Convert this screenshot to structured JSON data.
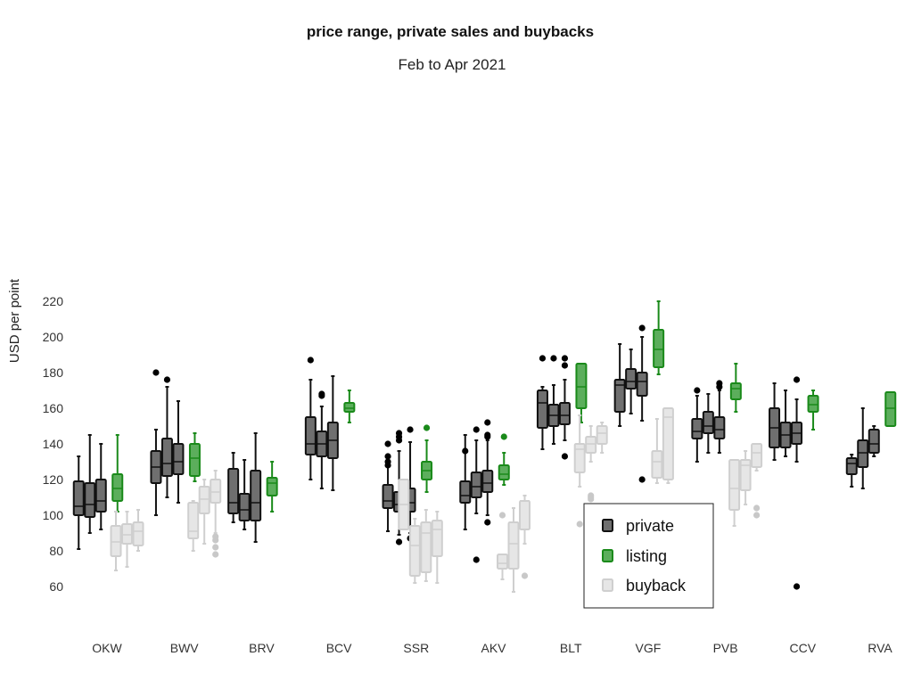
{
  "chart_data": {
    "type": "boxplot",
    "title": "price range, private sales and buybacks",
    "subtitle": "Feb to Apr 2021",
    "ylabel": "USD per point",
    "xlabel": "",
    "ylim": [
      45,
      222
    ],
    "yticks": [
      60,
      80,
      100,
      120,
      140,
      160,
      180,
      200,
      220
    ],
    "grid": false,
    "legend_position": "bottom-right",
    "categories": [
      "OKW",
      "BWV",
      "BRV",
      "BCV",
      "SSR",
      "AKV",
      "BLT",
      "VGF",
      "PVB",
      "CCV",
      "RVA"
    ],
    "legend": [
      {
        "key": "private",
        "label": "private"
      },
      {
        "key": "listing",
        "label": "listing"
      },
      {
        "key": "buyback",
        "label": "buyback"
      }
    ],
    "colors": {
      "private_fill": "#6f6f6f",
      "private_edge": "#111111",
      "listing_fill": "#5cae5c",
      "listing_edge": "#1a8a1a",
      "buyback_fill": "#e6e6e6",
      "buyback_edge": "#cfcfcf",
      "outlier_private": "#000000",
      "outlier_listing": "#1a8a1a",
      "outlier_buyback": "#c8c8c8"
    },
    "groups": [
      {
        "category": "OKW",
        "private": [
          {
            "min": 81,
            "q1": 100,
            "median": 105,
            "q3": 119,
            "max": 133,
            "outliers": []
          },
          {
            "min": 90,
            "q1": 99,
            "median": 106,
            "q3": 118,
            "max": 145,
            "outliers": []
          },
          {
            "min": 92,
            "q1": 102,
            "median": 108,
            "q3": 120,
            "max": 140,
            "outliers": []
          }
        ],
        "listing": [
          {
            "min": 102,
            "q1": 108,
            "median": 115,
            "q3": 123,
            "max": 145,
            "outliers": []
          }
        ],
        "buyback": [
          {
            "min": 69,
            "q1": 77,
            "median": 85,
            "q3": 94,
            "max": 102,
            "outliers": []
          },
          {
            "min": 71,
            "q1": 84,
            "median": 89,
            "q3": 95,
            "max": 102,
            "outliers": []
          },
          {
            "min": 80,
            "q1": 83,
            "median": 91,
            "q3": 96,
            "max": 103,
            "outliers": []
          }
        ]
      },
      {
        "category": "BWV",
        "private": [
          {
            "min": 100,
            "q1": 118,
            "median": 127,
            "q3": 136,
            "max": 148,
            "outliers": [
              180
            ]
          },
          {
            "min": 110,
            "q1": 122,
            "median": 129,
            "q3": 143,
            "max": 172,
            "outliers": [
              176
            ]
          },
          {
            "min": 107,
            "q1": 123,
            "median": 130,
            "q3": 140,
            "max": 164,
            "outliers": []
          }
        ],
        "listing": [
          {
            "min": 119,
            "q1": 122,
            "median": 132,
            "q3": 140,
            "max": 146,
            "outliers": []
          }
        ],
        "buyback": [
          {
            "min": 80,
            "q1": 87,
            "median": 91,
            "q3": 107,
            "max": 108,
            "outliers": []
          },
          {
            "min": 84,
            "q1": 101,
            "median": 109,
            "q3": 116,
            "max": 120,
            "outliers": []
          },
          {
            "min": 90,
            "q1": 107,
            "median": 113,
            "q3": 120,
            "max": 125,
            "outliers": [
              78,
              82,
              86,
              88
            ]
          }
        ]
      },
      {
        "category": "BRV",
        "private": [
          {
            "min": 96,
            "q1": 101,
            "median": 107,
            "q3": 126,
            "max": 135,
            "outliers": []
          },
          {
            "min": 92,
            "q1": 97,
            "median": 103,
            "q3": 112,
            "max": 131,
            "outliers": []
          },
          {
            "min": 85,
            "q1": 97,
            "median": 107,
            "q3": 125,
            "max": 146,
            "outliers": []
          }
        ],
        "listing": [
          {
            "min": 102,
            "q1": 111,
            "median": 118,
            "q3": 121,
            "max": 130,
            "outliers": []
          }
        ],
        "buyback": []
      },
      {
        "category": "BCV",
        "private": [
          {
            "min": 120,
            "q1": 134,
            "median": 140,
            "q3": 155,
            "max": 176,
            "outliers": [
              187
            ]
          },
          {
            "min": 115,
            "q1": 133,
            "median": 140,
            "q3": 147,
            "max": 161,
            "outliers": [
              167,
              168
            ]
          },
          {
            "min": 114,
            "q1": 132,
            "median": 142,
            "q3": 152,
            "max": 178,
            "outliers": []
          }
        ],
        "listing": [
          {
            "min": 152,
            "q1": 158,
            "median": 160,
            "q3": 163,
            "max": 170,
            "outliers": []
          }
        ],
        "buyback": []
      },
      {
        "category": "SSR",
        "private": [
          {
            "min": 91,
            "q1": 104,
            "median": 108,
            "q3": 117,
            "max": 134,
            "outliers": [
              140,
              128,
              130,
              133
            ]
          },
          {
            "min": 89,
            "q1": 102,
            "median": 106,
            "q3": 113,
            "max": 136,
            "outliers": [
              85,
              142,
              144,
              146
            ]
          },
          {
            "min": 90,
            "q1": 102,
            "median": 107,
            "q3": 115,
            "max": 141,
            "outliers": [
              87,
              148
            ]
          }
        ],
        "listing": [
          {
            "min": 113,
            "q1": 120,
            "median": 125,
            "q3": 130,
            "max": 142,
            "outliers": [
              149
            ]
          }
        ],
        "buyback": [
          {
            "min": 92,
            "q1": 92,
            "median": 106,
            "q3": 120,
            "max": 120,
            "outliers": []
          },
          {
            "min": 62,
            "q1": 66,
            "median": 83,
            "q3": 94,
            "max": 98,
            "outliers": []
          },
          {
            "min": 63,
            "q1": 68,
            "median": 90,
            "q3": 96,
            "max": 103,
            "outliers": []
          },
          {
            "min": 62,
            "q1": 77,
            "median": 92,
            "q3": 97,
            "max": 102,
            "outliers": []
          }
        ]
      },
      {
        "category": "AKV",
        "private": [
          {
            "min": 92,
            "q1": 107,
            "median": 111,
            "q3": 119,
            "max": 145,
            "outliers": [
              136
            ]
          },
          {
            "min": 101,
            "q1": 110,
            "median": 116,
            "q3": 124,
            "max": 142,
            "outliers": [
              148,
              75
            ]
          },
          {
            "min": 100,
            "q1": 113,
            "median": 118,
            "q3": 125,
            "max": 142,
            "outliers": [
              145,
              144,
              152,
              96
            ]
          }
        ],
        "listing": [
          {
            "min": 117,
            "q1": 120,
            "median": 123,
            "q3": 128,
            "max": 135,
            "outliers": [
              144
            ]
          }
        ],
        "buyback": [
          {
            "min": 64,
            "q1": 70,
            "median": 73,
            "q3": 78,
            "max": 78,
            "outliers": [
              100
            ]
          },
          {
            "min": 57,
            "q1": 70,
            "median": 84,
            "q3": 96,
            "max": 104,
            "outliers": []
          },
          {
            "min": 84,
            "q1": 92,
            "median": 108,
            "q3": 108,
            "max": 111,
            "outliers": [
              66
            ]
          }
        ]
      },
      {
        "category": "BLT",
        "private": [
          {
            "min": 137,
            "q1": 149,
            "median": 163,
            "q3": 170,
            "max": 172,
            "outliers": [
              188
            ]
          },
          {
            "min": 140,
            "q1": 150,
            "median": 156,
            "q3": 162,
            "max": 173,
            "outliers": [
              188
            ]
          },
          {
            "min": 142,
            "q1": 151,
            "median": 156,
            "q3": 163,
            "max": 176,
            "outliers": [
              133,
              184,
              188
            ]
          }
        ],
        "listing": [
          {
            "min": 152,
            "q1": 160,
            "median": 172,
            "q3": 185,
            "max": 185,
            "outliers": []
          }
        ],
        "buyback": [
          {
            "min": 116,
            "q1": 124,
            "median": 137,
            "q3": 140,
            "max": 156,
            "outliers": [
              95
            ]
          },
          {
            "min": 130,
            "q1": 135,
            "median": 140,
            "q3": 144,
            "max": 150,
            "outliers": [
              109,
              110,
              111
            ]
          },
          {
            "min": 135,
            "q1": 140,
            "median": 146,
            "q3": 150,
            "max": 152,
            "outliers": []
          }
        ]
      },
      {
        "category": "VGF",
        "private": [
          {
            "min": 150,
            "q1": 158,
            "median": 173,
            "q3": 176,
            "max": 196,
            "outliers": []
          },
          {
            "min": 157,
            "q1": 171,
            "median": 175,
            "q3": 182,
            "max": 193,
            "outliers": []
          },
          {
            "min": 153,
            "q1": 167,
            "median": 175,
            "q3": 180,
            "max": 200,
            "outliers": [
              120,
              205
            ]
          }
        ],
        "listing": [
          {
            "min": 179,
            "q1": 183,
            "median": 193,
            "q3": 204,
            "max": 220,
            "outliers": []
          }
        ],
        "buyback": [
          {
            "min": 118,
            "q1": 121,
            "median": 130,
            "q3": 136,
            "max": 154,
            "outliers": []
          },
          {
            "min": 118,
            "q1": 120,
            "median": 155,
            "q3": 160,
            "max": 160,
            "outliers": []
          }
        ]
      },
      {
        "category": "PVB",
        "private": [
          {
            "min": 130,
            "q1": 143,
            "median": 147,
            "q3": 154,
            "max": 167,
            "outliers": [
              170
            ]
          },
          {
            "min": 135,
            "q1": 146,
            "median": 150,
            "q3": 158,
            "max": 168,
            "outliers": []
          },
          {
            "min": 135,
            "q1": 143,
            "median": 148,
            "q3": 155,
            "max": 170,
            "outliers": [
              172,
              174
            ]
          }
        ],
        "listing": [
          {
            "min": 158,
            "q1": 165,
            "median": 171,
            "q3": 174,
            "max": 185,
            "outliers": []
          }
        ],
        "buyback": [
          {
            "min": 94,
            "q1": 103,
            "median": 115,
            "q3": 131,
            "max": 131,
            "outliers": []
          },
          {
            "min": 106,
            "q1": 114,
            "median": 128,
            "q3": 131,
            "max": 136,
            "outliers": []
          },
          {
            "min": 125,
            "q1": 127,
            "median": 135,
            "q3": 140,
            "max": 140,
            "outliers": [
              100,
              104
            ]
          }
        ]
      },
      {
        "category": "CCV",
        "private": [
          {
            "min": 131,
            "q1": 138,
            "median": 149,
            "q3": 160,
            "max": 174,
            "outliers": []
          },
          {
            "min": 133,
            "q1": 138,
            "median": 145,
            "q3": 152,
            "max": 170,
            "outliers": []
          },
          {
            "min": 130,
            "q1": 140,
            "median": 146,
            "q3": 152,
            "max": 165,
            "outliers": [
              176,
              60
            ]
          }
        ],
        "listing": [
          {
            "min": 148,
            "q1": 158,
            "median": 162,
            "q3": 167,
            "max": 170,
            "outliers": []
          }
        ],
        "buyback": []
      },
      {
        "category": "RVA",
        "private": [
          {
            "min": 116,
            "q1": 123,
            "median": 129,
            "q3": 132,
            "max": 134,
            "outliers": []
          },
          {
            "min": 115,
            "q1": 127,
            "median": 135,
            "q3": 142,
            "max": 160,
            "outliers": []
          },
          {
            "min": 133,
            "q1": 135,
            "median": 140,
            "q3": 148,
            "max": 150,
            "outliers": []
          }
        ],
        "listing": [
          {
            "min": 150,
            "q1": 150,
            "median": 160,
            "q3": 169,
            "max": 169,
            "outliers": []
          }
        ],
        "buyback": []
      }
    ]
  }
}
